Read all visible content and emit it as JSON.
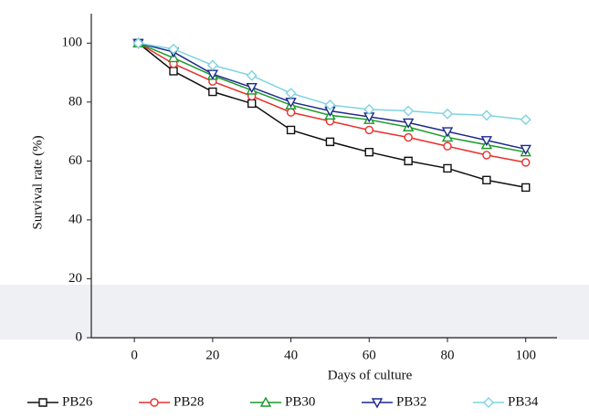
{
  "chart_data": {
    "type": "line",
    "xlabel": "Days of culture",
    "ylabel": "Survival rate (%)",
    "x": [
      1,
      10,
      20,
      30,
      40,
      50,
      60,
      70,
      80,
      90,
      100
    ],
    "xlim": [
      -11,
      108
    ],
    "ylim": [
      0,
      110
    ],
    "xticks": [
      0,
      20,
      40,
      60,
      80,
      100
    ],
    "yticks": [
      0,
      20,
      40,
      60,
      80,
      100
    ],
    "series": [
      {
        "name": "PB26",
        "color": "#111111",
        "marker": "square",
        "values": [
          100,
          90.5,
          83.5,
          79.5,
          70.5,
          66.5,
          63,
          60,
          57.5,
          53.5,
          51
        ]
      },
      {
        "name": "PB28",
        "color": "#e8302c",
        "marker": "circle",
        "values": [
          100,
          93,
          87,
          82,
          76.5,
          73.5,
          70.5,
          68,
          65,
          62,
          59.5
        ]
      },
      {
        "name": "PB30",
        "color": "#1a9a2a",
        "marker": "triangle-up",
        "values": [
          100,
          95,
          89,
          84,
          79,
          75.5,
          74,
          71.5,
          68,
          65.5,
          63
        ]
      },
      {
        "name": "PB32",
        "color": "#1c2a8c",
        "marker": "triangle-down",
        "values": [
          100,
          97,
          89.5,
          85,
          80,
          77,
          75,
          73,
          70,
          67,
          64
        ]
      },
      {
        "name": "PB34",
        "color": "#7fd3e0",
        "marker": "diamond",
        "values": [
          100,
          98,
          92.5,
          89,
          83,
          79,
          77.5,
          77,
          76,
          75.5,
          74
        ]
      }
    ]
  }
}
